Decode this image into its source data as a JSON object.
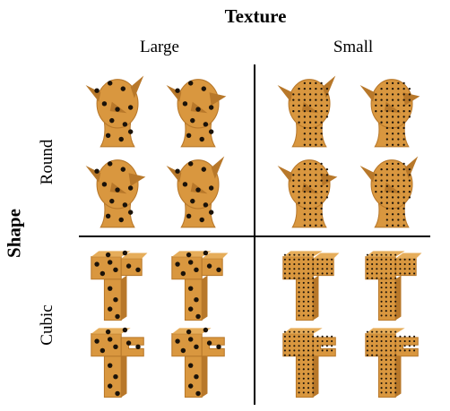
{
  "title": "Texture",
  "columns": [
    "Large",
    "Small"
  ],
  "axis_title": "Shape",
  "rows": [
    "Round",
    "Cubic"
  ],
  "colors": {
    "object": "#d9973f",
    "object_dark": "#b8782a",
    "dot": "#1a1209",
    "line": "#000000"
  }
}
